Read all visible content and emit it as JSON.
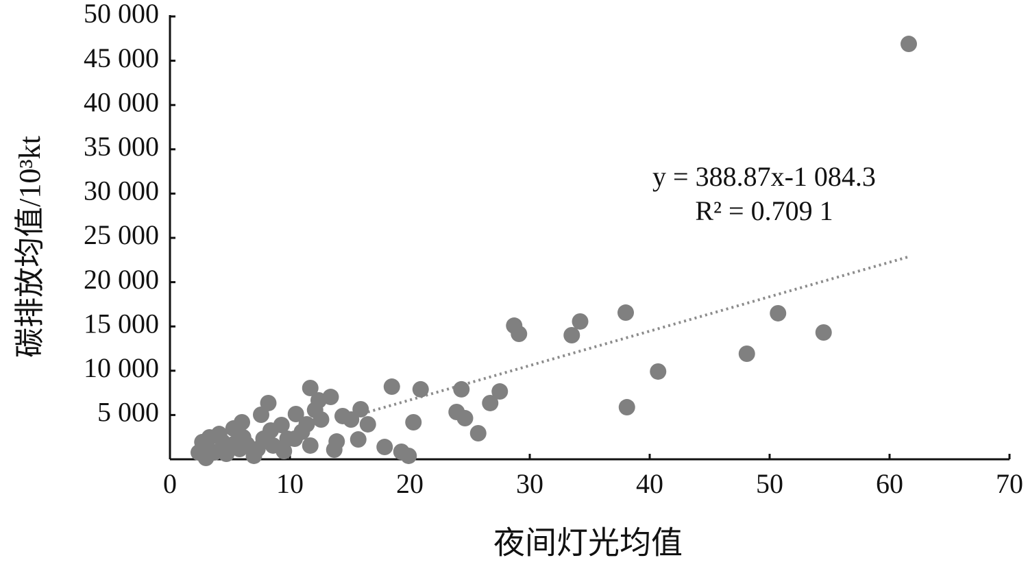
{
  "chart_data": {
    "type": "scatter",
    "x_label": "夜间灯光均值",
    "y_label": "碳排放均值/10³kt",
    "x": [
      61.6,
      38.0,
      50.7,
      34.2,
      28.7,
      29.1,
      33.5,
      54.5,
      48.1,
      40.7,
      38.1,
      18.5,
      20.9,
      24.3,
      27.5,
      26.7,
      23.9,
      24.6,
      25.7,
      20.3,
      17.9,
      19.3,
      19.9,
      16.5,
      15.9,
      15.7,
      13.9,
      13.7,
      13.4,
      11.7,
      12.4,
      11.7,
      8.2,
      7.6,
      10.5,
      14.4,
      12.6,
      11.4,
      9.3,
      6.0,
      5.3,
      9.8,
      7.8,
      6.1,
      4.1,
      3.3,
      3.1,
      5.8,
      8.6,
      10.4,
      7.0,
      4.7,
      3.0,
      3.7,
      5.3,
      9.5,
      8.4,
      11.0,
      2.7,
      4.4,
      6.4,
      7.3,
      2.4,
      15.1,
      12.1
    ],
    "values": [
      46900,
      16560,
      16490,
      15560,
      15090,
      14160,
      14010,
      14320,
      11920,
      9910,
      5880,
      8200,
      7900,
      7900,
      7660,
      6350,
      5340,
      4640,
      2940,
      4180,
      1390,
      850,
      390,
      3950,
      5650,
      2240,
      2010,
      1080,
      7040,
      8050,
      6660,
      1550,
      6350,
      5030,
      5110,
      4880,
      4490,
      3950,
      3870,
      4180,
      3480,
      2320,
      2320,
      2480,
      2860,
      2480,
      1320,
      1160,
      1550,
      2320,
      390,
      620,
      150,
      770,
      1700,
      930,
      3250,
      3100,
      1940,
      1940,
      1700,
      1160,
      770,
      4490,
      5570
    ],
    "color": "#808080",
    "xlim": [
      0,
      70
    ],
    "xticks": [
      0,
      10,
      20,
      30,
      40,
      50,
      60,
      70
    ],
    "ylim": [
      0,
      50000
    ],
    "yticks": [
      {
        "value": 5000,
        "label": "5 000"
      },
      {
        "value": 10000,
        "label": "10 000"
      },
      {
        "value": 15000,
        "label": "15 000"
      },
      {
        "value": 20000,
        "label": "20 000"
      },
      {
        "value": 25000,
        "label": "25 000"
      },
      {
        "value": 30000,
        "label": "30 000"
      },
      {
        "value": 35000,
        "label": "35 000"
      },
      {
        "value": 40000,
        "label": "40 000"
      },
      {
        "value": 45000,
        "label": "45 000"
      },
      {
        "value": 50000,
        "label": "50 000"
      }
    ],
    "trendline": {
      "slope": 388.87,
      "intercept": -1084.3,
      "xlim": [
        16.5,
        61.6
      ],
      "color": "#8c8c8c",
      "equation": "y = 388.87x-1 084.3",
      "r2_label": "R² = 0.709 1"
    }
  }
}
